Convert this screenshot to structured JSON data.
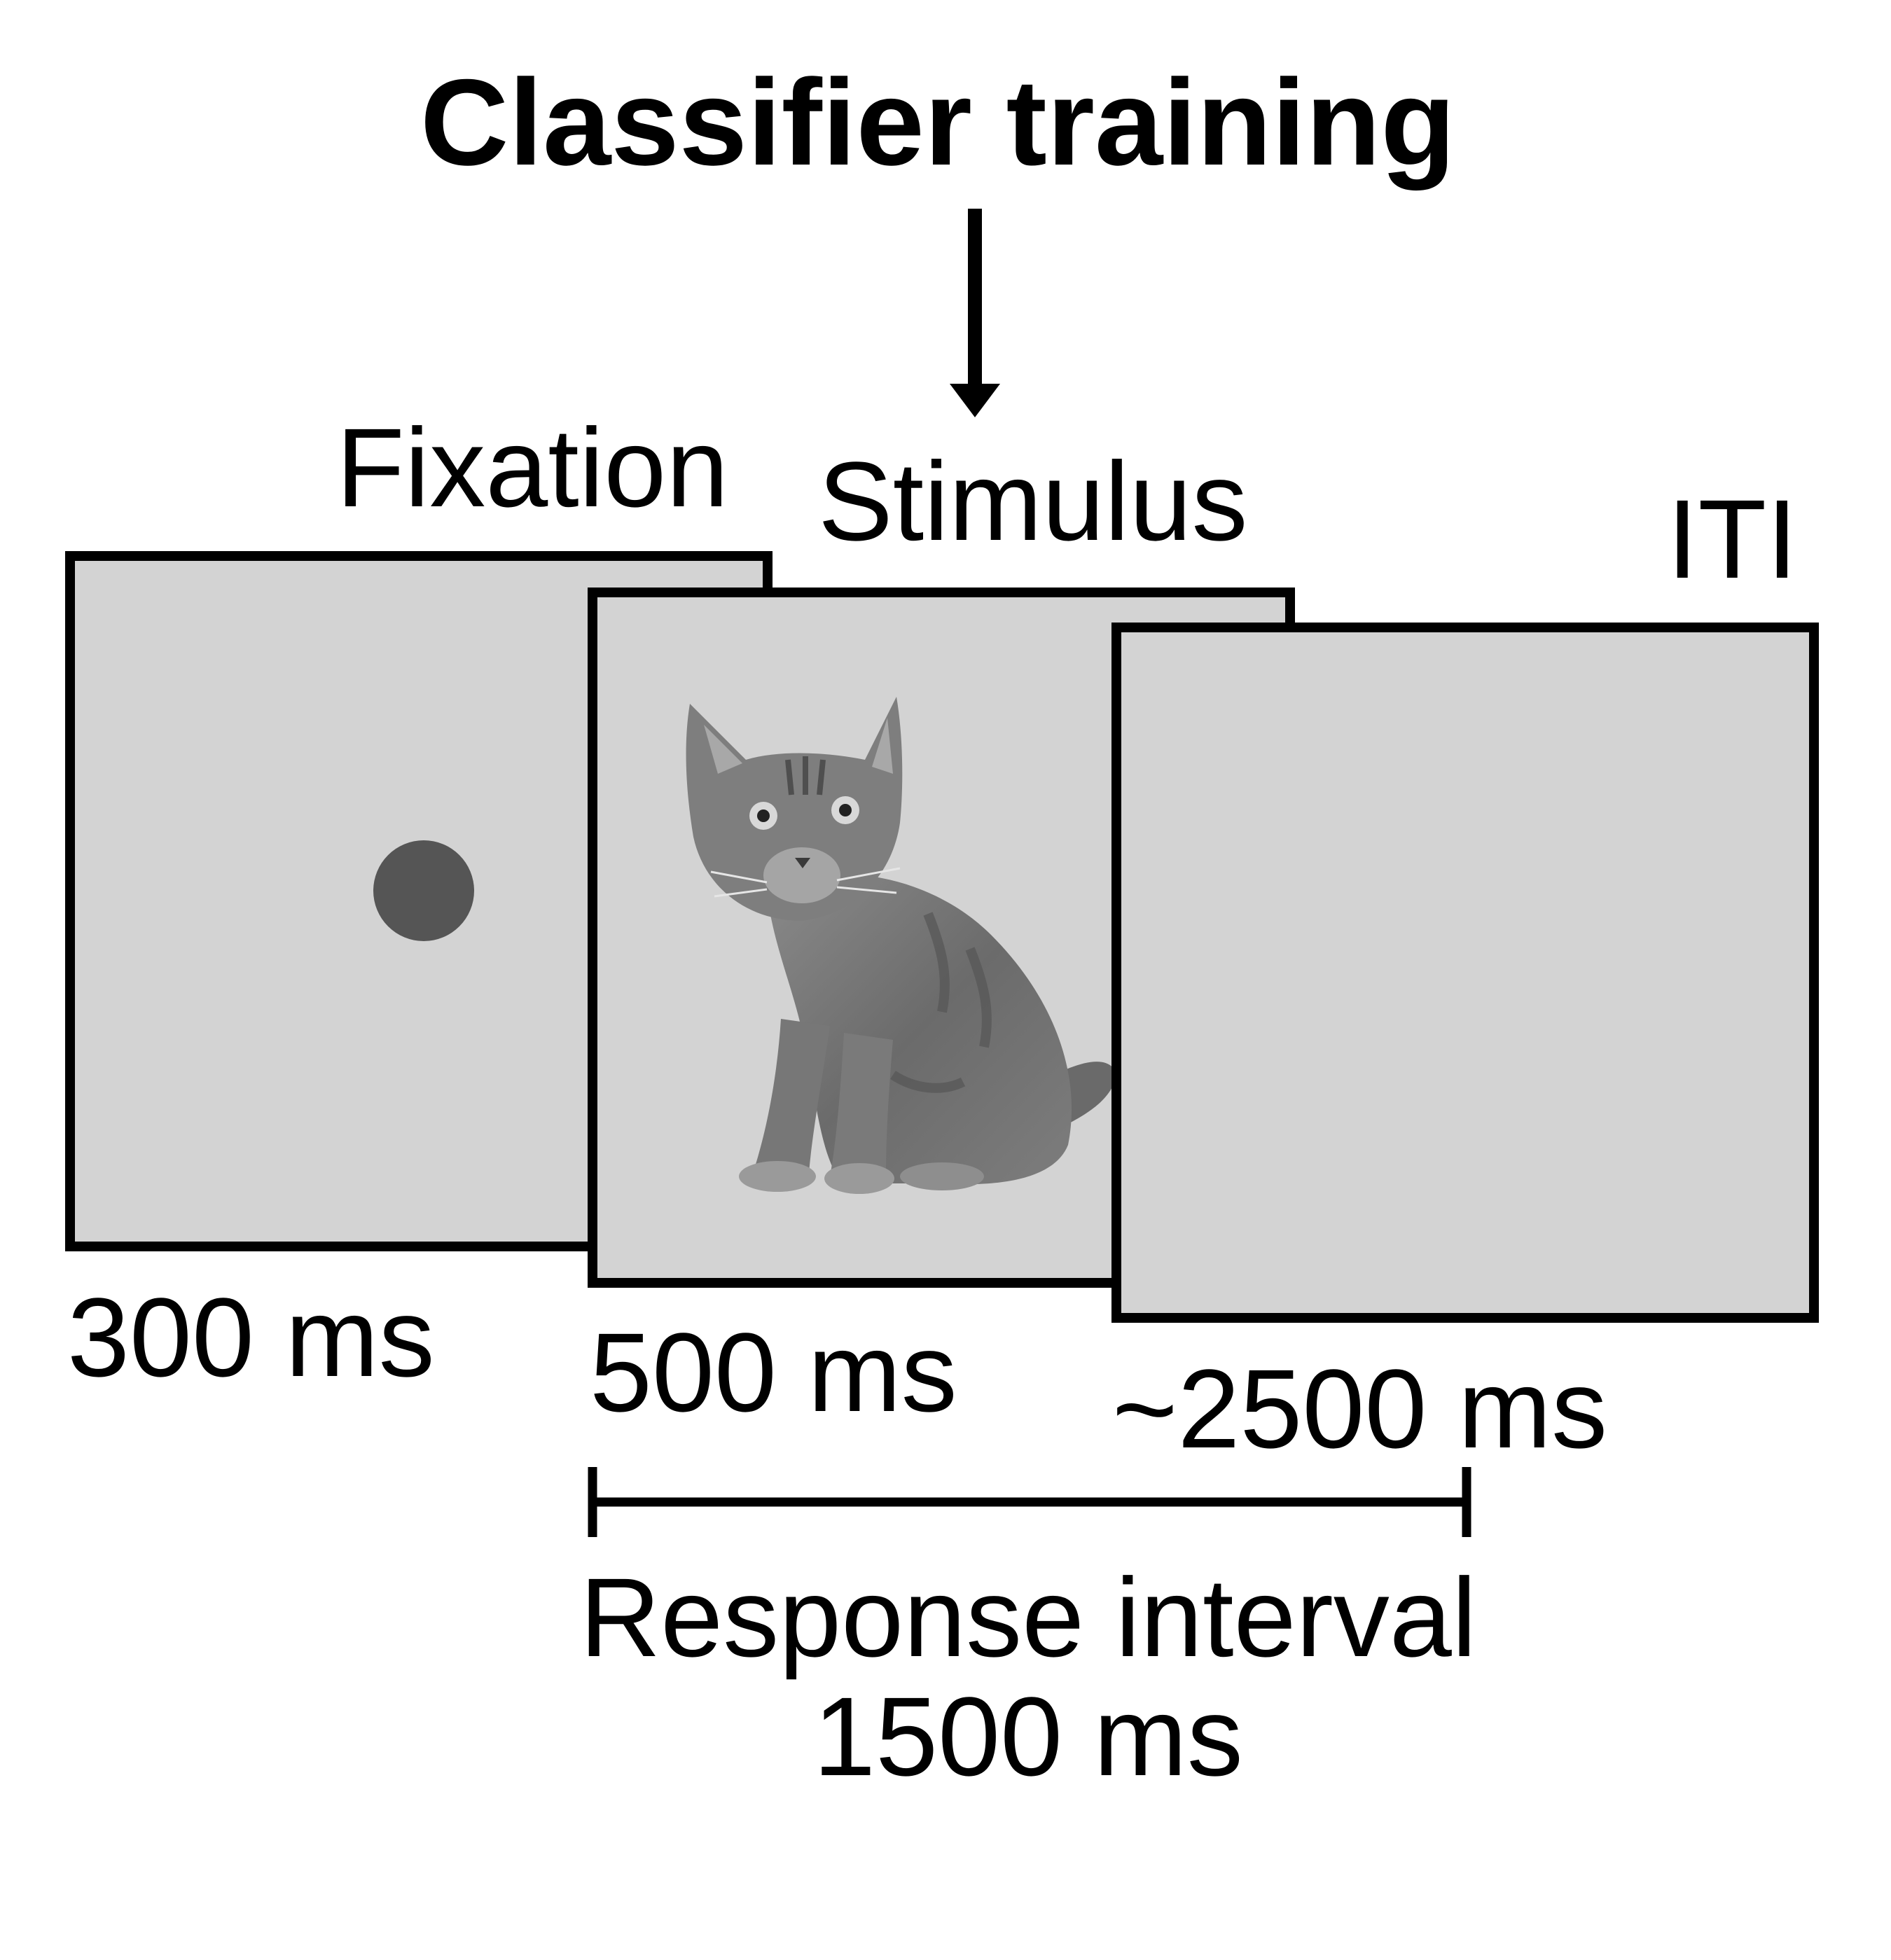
{
  "title": "Classifier training",
  "phases": [
    {
      "label": "Fixation",
      "duration": "300 ms"
    },
    {
      "label": "Stimulus",
      "duration": "500 ms"
    },
    {
      "label": "ITI",
      "duration": "~2500 ms"
    }
  ],
  "response_interval": {
    "label": "Response interval",
    "duration": "1500 ms"
  },
  "colors": {
    "screen_fill": "#d3d3d3",
    "fixation_dot": "#555555",
    "outline": "#000000"
  },
  "icons": {
    "stimulus": "cat-image",
    "fixation": "fixation-dot",
    "pointer": "down-arrow-icon"
  }
}
